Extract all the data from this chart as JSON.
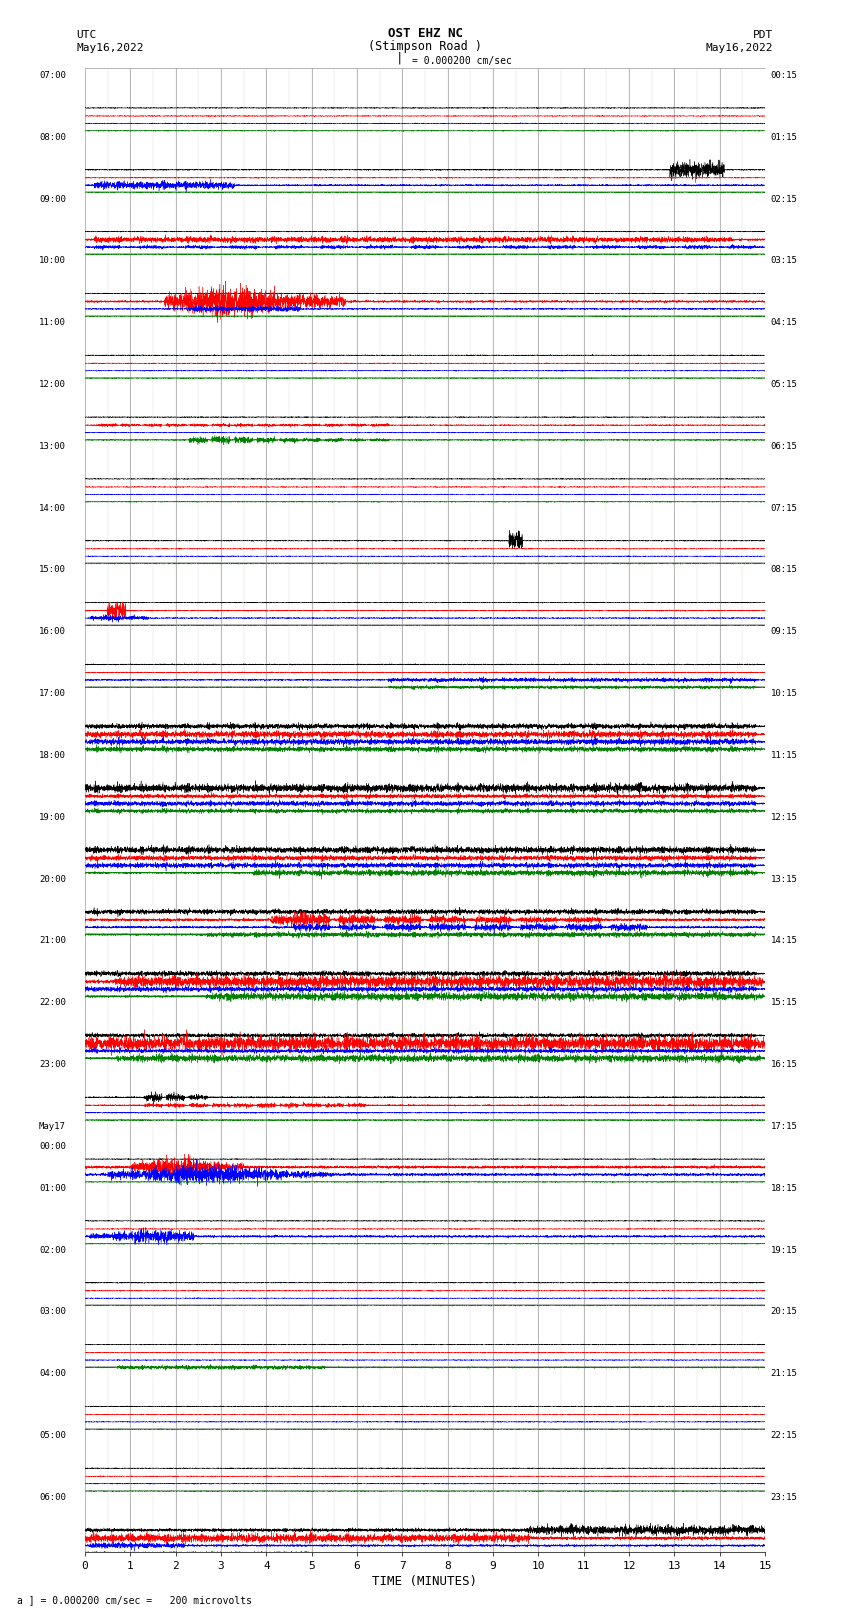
{
  "title_line1": "OST EHZ NC",
  "title_line2": "(Stimpson Road )",
  "title_line3": "I = 0.000200 cm/sec",
  "left_header_line1": "UTC",
  "left_header_line2": "May16,2022",
  "right_header_line1": "PDT",
  "right_header_line2": "May16,2022",
  "xlabel": "TIME (MINUTES)",
  "footer": "a ] = 0.000200 cm/sec =   200 microvolts",
  "utc_labels": [
    "07:00",
    "08:00",
    "09:00",
    "10:00",
    "11:00",
    "12:00",
    "13:00",
    "14:00",
    "15:00",
    "16:00",
    "17:00",
    "18:00",
    "19:00",
    "20:00",
    "21:00",
    "22:00",
    "23:00",
    "May17\n00:00",
    "01:00",
    "02:00",
    "03:00",
    "04:00",
    "05:00",
    "06:00"
  ],
  "pdt_labels": [
    "00:15",
    "01:15",
    "02:15",
    "03:15",
    "04:15",
    "05:15",
    "06:15",
    "07:15",
    "08:15",
    "09:15",
    "10:15",
    "11:15",
    "12:15",
    "13:15",
    "14:15",
    "15:15",
    "16:15",
    "17:15",
    "18:15",
    "19:15",
    "20:15",
    "21:15",
    "22:15",
    "23:15"
  ],
  "n_rows": 24,
  "n_traces_per_row": 4,
  "trace_colors": [
    "black",
    "red",
    "blue",
    "green"
  ],
  "xmin": 0,
  "xmax": 15,
  "xticks": [
    0,
    1,
    2,
    3,
    4,
    5,
    6,
    7,
    8,
    9,
    10,
    11,
    12,
    13,
    14,
    15
  ],
  "fig_width": 8.5,
  "fig_height": 16.13,
  "bg_color": "white",
  "grid_color": "#888888",
  "noise_scale": 0.004,
  "seed": 42
}
